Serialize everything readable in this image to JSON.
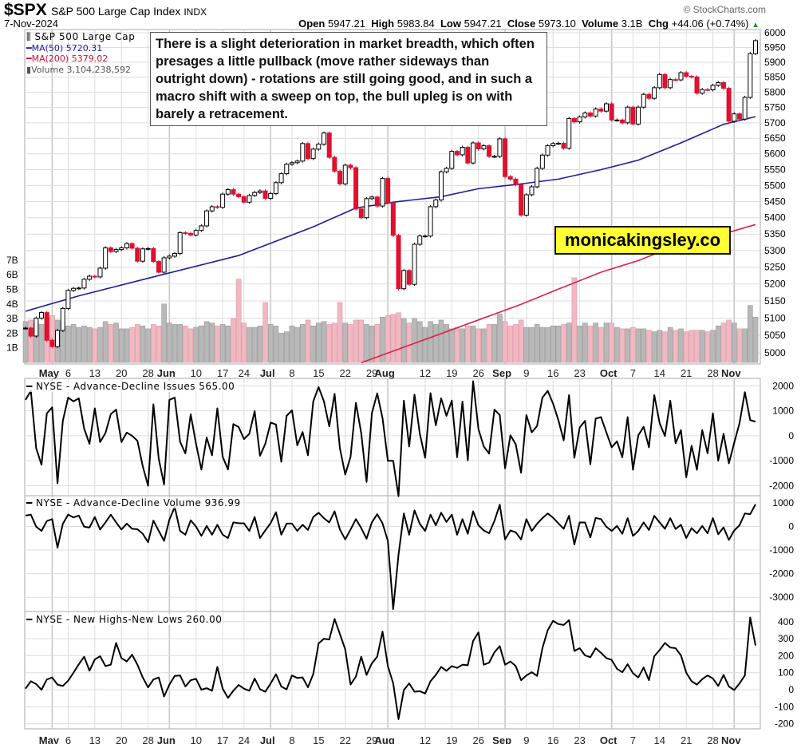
{
  "header": {
    "symbol": "$SPX",
    "name": "S&P 500 Large Cap Index",
    "exchange": "INDX",
    "date": "7-Nov-2024",
    "open_label": "Open",
    "open": "5947.21",
    "high_label": "High",
    "high": "5983.84",
    "low_label": "Low",
    "low": "5947.21",
    "close_label": "Close",
    "close": "5973.10",
    "volume_label": "Volume",
    "volume": "3.1B",
    "chg_label": "Chg",
    "chg": "+44.06 (+0.74%)",
    "copyright": "© StockCharts.com"
  },
  "legend": {
    "series": "S&P 500 Large Cap",
    "ma50": "MA(50) 5720.31",
    "ma200": "MA(200) 5379.02",
    "volume": "Volume 3,104,238,592"
  },
  "annotation": "There is a slight deterioration in market breadth, which often presages a little pullback (move rather sideways than outright down) - rotations are still going good, and in such a macro shift with a sweep on top, the bull upleg is on with barely a retracement.",
  "watermark": "monicakingsley.co",
  "colors": {
    "up": "#000000",
    "down": "#e0102f",
    "ma50": "#1c1ca0",
    "ma200": "#e0204a",
    "volume_up": "#b8b8b8",
    "volume_down": "#f2b8c2",
    "line": "#000000",
    "grid": "#dcdcdc"
  },
  "chart_data": [
    {
      "type": "candlestick",
      "title": "$SPX S&P 500 Large Cap Index INDX",
      "scale": "log",
      "ylim": [
        4960,
        6010
      ],
      "y_ticks": [
        6000,
        5950,
        5900,
        5850,
        5800,
        5750,
        5700,
        5650,
        5600,
        5550,
        5500,
        5450,
        5400,
        5350,
        5300,
        5250,
        5200,
        5150,
        5100,
        5050,
        5000
      ],
      "volume_ticks": [
        {
          "value": 1,
          "label": "1B"
        },
        {
          "value": 2,
          "label": "2B"
        },
        {
          "value": 3,
          "label": "3B"
        },
        {
          "value": 4,
          "label": "4B"
        },
        {
          "value": 5,
          "label": "5B"
        },
        {
          "value": 6,
          "label": "6B"
        },
        {
          "value": 7,
          "label": "7B"
        }
      ],
      "dates": [
        "2024-04-24",
        "2024-04-25",
        "2024-04-26",
        "2024-04-29",
        "2024-04-30",
        "2024-05-01",
        "2024-05-02",
        "2024-05-03",
        "2024-05-06",
        "2024-05-07",
        "2024-05-08",
        "2024-05-09",
        "2024-05-10",
        "2024-05-13",
        "2024-05-14",
        "2024-05-15",
        "2024-05-16",
        "2024-05-17",
        "2024-05-20",
        "2024-05-21",
        "2024-05-22",
        "2024-05-23",
        "2024-05-24",
        "2024-05-28",
        "2024-05-29",
        "2024-05-30",
        "2024-05-31",
        "2024-06-03",
        "2024-06-04",
        "2024-06-05",
        "2024-06-06",
        "2024-06-07",
        "2024-06-10",
        "2024-06-11",
        "2024-06-12",
        "2024-06-13",
        "2024-06-14",
        "2024-06-17",
        "2024-06-18",
        "2024-06-20",
        "2024-06-21",
        "2024-06-24",
        "2024-06-25",
        "2024-06-26",
        "2024-06-27",
        "2024-06-28",
        "2024-07-01",
        "2024-07-02",
        "2024-07-03",
        "2024-07-05",
        "2024-07-08",
        "2024-07-09",
        "2024-07-10",
        "2024-07-11",
        "2024-07-12",
        "2024-07-15",
        "2024-07-16",
        "2024-07-17",
        "2024-07-18",
        "2024-07-19",
        "2024-07-22",
        "2024-07-23",
        "2024-07-24",
        "2024-07-25",
        "2024-07-26",
        "2024-07-29",
        "2024-07-30",
        "2024-07-31",
        "2024-08-01",
        "2024-08-02",
        "2024-08-05",
        "2024-08-06",
        "2024-08-07",
        "2024-08-08",
        "2024-08-09",
        "2024-08-12",
        "2024-08-13",
        "2024-08-14",
        "2024-08-15",
        "2024-08-16",
        "2024-08-19",
        "2024-08-20",
        "2024-08-21",
        "2024-08-22",
        "2024-08-23",
        "2024-08-26",
        "2024-08-27",
        "2024-08-28",
        "2024-08-29",
        "2024-08-30",
        "2024-09-03",
        "2024-09-04",
        "2024-09-05",
        "2024-09-06",
        "2024-09-09",
        "2024-09-10",
        "2024-09-11",
        "2024-09-12",
        "2024-09-13",
        "2024-09-16",
        "2024-09-17",
        "2024-09-18",
        "2024-09-19",
        "2024-09-20",
        "2024-09-23",
        "2024-09-24",
        "2024-09-25",
        "2024-09-26",
        "2024-09-27",
        "2024-09-30",
        "2024-10-01",
        "2024-10-02",
        "2024-10-03",
        "2024-10-04",
        "2024-10-07",
        "2024-10-08",
        "2024-10-09",
        "2024-10-10",
        "2024-10-11",
        "2024-10-14",
        "2024-10-15",
        "2024-10-16",
        "2024-10-17",
        "2024-10-18",
        "2024-10-21",
        "2024-10-22",
        "2024-10-23",
        "2024-10-24",
        "2024-10-25",
        "2024-10-28",
        "2024-10-29",
        "2024-10-30",
        "2024-10-31",
        "2024-11-01",
        "2024-11-04",
        "2024-11-05",
        "2024-11-06",
        "2024-11-07"
      ],
      "close": [
        5071,
        5048,
        5100,
        5116,
        5036,
        5018,
        5064,
        5128,
        5181,
        5187,
        5188,
        5214,
        5223,
        5221,
        5247,
        5308,
        5297,
        5303,
        5308,
        5321,
        5307,
        5268,
        5305,
        5306,
        5267,
        5235,
        5278,
        5283,
        5291,
        5354,
        5352,
        5347,
        5361,
        5375,
        5421,
        5434,
        5432,
        5473,
        5487,
        5473,
        5465,
        5448,
        5469,
        5478,
        5483,
        5460,
        5475,
        5509,
        5537,
        5567,
        5572,
        5577,
        5633,
        5585,
        5615,
        5631,
        5667,
        5589,
        5545,
        5505,
        5564,
        5556,
        5427,
        5400,
        5459,
        5464,
        5436,
        5522,
        5446,
        5346,
        5186,
        5240,
        5199,
        5319,
        5344,
        5344,
        5434,
        5455,
        5543,
        5554,
        5608,
        5597,
        5621,
        5571,
        5635,
        5616,
        5626,
        5592,
        5592,
        5648,
        5528,
        5520,
        5503,
        5408,
        5471,
        5496,
        5554,
        5596,
        5626,
        5633,
        5634,
        5618,
        5714,
        5703,
        5719,
        5732,
        5722,
        5745,
        5738,
        5762,
        5709,
        5709,
        5700,
        5751,
        5696,
        5751,
        5793,
        5780,
        5815,
        5859,
        5815,
        5842,
        5841,
        5865,
        5853,
        5851,
        5797,
        5809,
        5808,
        5823,
        5832,
        5813,
        5705,
        5729,
        5712,
        5783,
        5929,
        5973
      ],
      "volume_billions": [
        2.8,
        2.9,
        2.7,
        2.6,
        3.1,
        3.2,
        2.9,
        2.8,
        2.5,
        2.6,
        2.4,
        2.5,
        2.4,
        2.3,
        2.4,
        2.8,
        2.6,
        2.7,
        2.3,
        2.3,
        2.4,
        2.6,
        2.5,
        2.3,
        2.6,
        2.5,
        4.0,
        2.7,
        2.6,
        2.6,
        2.5,
        2.3,
        2.4,
        2.5,
        2.8,
        2.7,
        2.5,
        2.6,
        2.5,
        3.0,
        5.7,
        2.7,
        2.4,
        2.4,
        2.5,
        4.1,
        2.6,
        2.5,
        2.0,
        2.1,
        2.5,
        2.4,
        2.6,
        2.9,
        2.5,
        2.7,
        2.8,
        2.6,
        2.7,
        4.1,
        2.7,
        2.6,
        2.9,
        2.9,
        2.6,
        2.5,
        2.6,
        3.1,
        3.2,
        3.3,
        3.4,
        3.0,
        2.7,
        3.0,
        2.8,
        2.4,
        2.8,
        2.6,
        2.9,
        2.6,
        2.3,
        2.4,
        2.3,
        2.5,
        2.5,
        2.3,
        2.3,
        2.6,
        2.6,
        3.3,
        2.8,
        2.5,
        2.6,
        2.9,
        2.4,
        2.4,
        2.6,
        2.4,
        2.4,
        2.5,
        2.5,
        2.6,
        2.7,
        5.8,
        2.5,
        2.7,
        2.5,
        2.7,
        2.4,
        2.7,
        2.7,
        2.4,
        2.3,
        2.3,
        2.4,
        2.3,
        2.3,
        2.2,
        2.1,
        2.2,
        2.1,
        2.4,
        2.2,
        2.3,
        2.1,
        2.2,
        2.2,
        2.2,
        2.1,
        2.2,
        2.5,
        2.7,
        2.9,
        2.7,
        2.3,
        2.3,
        3.9,
        3.1
      ],
      "ma50": [
        {
          "date": "2024-04-24",
          "value": 5120
        },
        {
          "date": "2024-05-08",
          "value": 5165
        },
        {
          "date": "2024-05-30",
          "value": 5225
        },
        {
          "date": "2024-06-21",
          "value": 5285
        },
        {
          "date": "2024-07-12",
          "value": 5372
        },
        {
          "date": "2024-07-24",
          "value": 5430
        },
        {
          "date": "2024-08-05",
          "value": 5450
        },
        {
          "date": "2024-08-15",
          "value": 5465
        },
        {
          "date": "2024-08-26",
          "value": 5490
        },
        {
          "date": "2024-09-06",
          "value": 5505
        },
        {
          "date": "2024-09-17",
          "value": 5520
        },
        {
          "date": "2024-09-27",
          "value": 5550
        },
        {
          "date": "2024-10-08",
          "value": 5580
        },
        {
          "date": "2024-10-18",
          "value": 5635
        },
        {
          "date": "2024-10-30",
          "value": 5695
        },
        {
          "date": "2024-11-07",
          "value": 5720
        }
      ],
      "ma200": [
        {
          "date": "2024-07-25",
          "value": 4972
        },
        {
          "date": "2024-08-15",
          "value": 5055
        },
        {
          "date": "2024-09-06",
          "value": 5140
        },
        {
          "date": "2024-09-17",
          "value": 5185
        },
        {
          "date": "2024-09-27",
          "value": 5235
        },
        {
          "date": "2024-10-08",
          "value": 5270
        },
        {
          "date": "2024-10-14",
          "value": 5295
        },
        {
          "date": "2024-11-07",
          "value": 5379
        }
      ],
      "x_ticks": [
        {
          "date": "2024-05-01",
          "label": "May",
          "major": true
        },
        {
          "date": "2024-05-06",
          "label": "6"
        },
        {
          "date": "2024-05-13",
          "label": "13"
        },
        {
          "date": "2024-05-20",
          "label": "20"
        },
        {
          "date": "2024-05-28",
          "label": "28"
        },
        {
          "date": "2024-06-03",
          "label": "Jun",
          "major": true
        },
        {
          "date": "2024-06-10",
          "label": "10"
        },
        {
          "date": "2024-06-17",
          "label": "17"
        },
        {
          "date": "2024-06-24",
          "label": "24"
        },
        {
          "date": "2024-07-01",
          "label": "Jul",
          "major": true
        },
        {
          "date": "2024-07-08",
          "label": "8"
        },
        {
          "date": "2024-07-15",
          "label": "15"
        },
        {
          "date": "2024-07-22",
          "label": "22"
        },
        {
          "date": "2024-07-29",
          "label": "29"
        },
        {
          "date": "2024-08-01",
          "label": "Aug",
          "major": true
        },
        {
          "date": "2024-08-12",
          "label": "12"
        },
        {
          "date": "2024-08-19",
          "label": "19"
        },
        {
          "date": "2024-08-26",
          "label": "26"
        },
        {
          "date": "2024-09-03",
          "label": "Sep",
          "major": true
        },
        {
          "date": "2024-09-09",
          "label": "9"
        },
        {
          "date": "2024-09-16",
          "label": "16"
        },
        {
          "date": "2024-09-23",
          "label": "23"
        },
        {
          "date": "2024-10-01",
          "label": "Oct",
          "major": true
        },
        {
          "date": "2024-10-07",
          "label": "7"
        },
        {
          "date": "2024-10-14",
          "label": "14"
        },
        {
          "date": "2024-10-21",
          "label": "21"
        },
        {
          "date": "2024-10-28",
          "label": "28"
        },
        {
          "date": "2024-11-01",
          "label": "Nov",
          "major": true
        }
      ]
    },
    {
      "type": "line",
      "title": "NYSE - Advance-Decline Issues 565.00",
      "ylim": [
        -2400,
        2300
      ],
      "y_ticks": [
        2000,
        1000,
        0,
        -1000,
        -2000
      ],
      "values": [
        1440,
        1800,
        -500,
        -1160,
        900,
        1140,
        -1900,
        600,
        1530,
        1380,
        1500,
        290,
        -320,
        1100,
        -250,
        110,
        870,
        1050,
        -250,
        130,
        0,
        -200,
        -1220,
        -2000,
        1260,
        -920,
        -1950,
        1440,
        1530,
        -230,
        -710,
        860,
        -320,
        -1350,
        -70,
        -780,
        1100,
        -840,
        -1350,
        470,
        350,
        -130,
        80,
        990,
        -800,
        -320,
        530,
        450,
        -1040,
        800,
        1020,
        -380,
        150,
        -780,
        1380,
        1950,
        1380,
        380,
        1680,
        -500,
        -1550,
        -840,
        1320,
        110,
        -1850,
        900,
        1700,
        710,
        -1000,
        -1000,
        -2420,
        1410,
        -430,
        1650,
        80,
        -880,
        1710,
        420,
        1500,
        800,
        1410,
        -860,
        1370,
        -980,
        2190,
        270,
        -430,
        -710,
        1050,
        830,
        -1300,
        20,
        -340,
        -1480,
        830,
        140,
        390,
        1530,
        1800,
        1290,
        630,
        -180,
        1630,
        -880,
        330,
        600,
        -1140,
        690,
        750,
        140,
        -460,
        -220,
        -860,
        750,
        -1360,
        20,
        360,
        -460,
        1630,
        510,
        -10,
        1410,
        -300,
        230,
        -1660,
        -400,
        -1360,
        230,
        -700,
        900,
        -1000,
        80,
        -1100,
        -280,
        510,
        1750,
        630,
        565
      ]
    },
    {
      "type": "line",
      "title": "NYSE - Advance-Decline Volume 936.99",
      "ylim": [
        -3600,
        1300
      ],
      "y_ticks": [
        1000,
        0,
        -1000,
        -2000,
        -3000
      ],
      "values": [
        460,
        500,
        -10,
        -190,
        230,
        310,
        -900,
        110,
        500,
        380,
        460,
        -10,
        -50,
        400,
        -130,
        170,
        500,
        170,
        -130,
        120,
        -100,
        -120,
        -310,
        -670,
        250,
        -190,
        -610,
        290,
        820,
        -190,
        -350,
        260,
        -10,
        -400,
        20,
        -350,
        70,
        -350,
        -490,
        170,
        140,
        130,
        -190,
        400,
        -490,
        -170,
        140,
        600,
        -350,
        120,
        120,
        -190,
        70,
        -150,
        400,
        580,
        350,
        170,
        640,
        -130,
        -550,
        -130,
        310,
        -70,
        -520,
        170,
        520,
        130,
        -610,
        -3500,
        -1200,
        550,
        -350,
        680,
        110,
        -190,
        500,
        50,
        580,
        190,
        500,
        -350,
        310,
        -310,
        640,
        50,
        -170,
        -290,
        230,
        920,
        -550,
        -170,
        -250,
        -550,
        310,
        -190,
        110,
        350,
        550,
        370,
        130,
        -100,
        450,
        -760,
        170,
        170,
        -460,
        360,
        310,
        -10,
        -190,
        20,
        -310,
        350,
        -400,
        -190,
        170,
        -150,
        450,
        170,
        -100,
        350,
        -110,
        70,
        -490,
        -70,
        -290,
        20,
        -290,
        350,
        -330,
        -40,
        -570,
        -170,
        50,
        550,
        520,
        936.99
      ]
    },
    {
      "type": "line",
      "title": "NYSE - New Highs-New Lows 260.00",
      "ylim": [
        -230,
        460
      ],
      "y_ticks": [
        400,
        300,
        200,
        100,
        0,
        -100,
        -200
      ],
      "values": [
        6,
        50,
        33,
        0,
        60,
        72,
        30,
        22,
        53,
        100,
        150,
        194,
        112,
        178,
        197,
        139,
        147,
        275,
        186,
        166,
        206,
        147,
        72,
        14,
        60,
        72,
        -40,
        30,
        81,
        84,
        19,
        56,
        64,
        0,
        9,
        -6,
        134,
        6,
        -48,
        -6,
        28,
        6,
        -6,
        66,
        3,
        -12,
        37,
        91,
        19,
        2,
        84,
        69,
        72,
        14,
        92,
        272,
        300,
        295,
        416,
        327,
        237,
        30,
        77,
        194,
        87,
        155,
        194,
        342,
        139,
        37,
        -173,
        -2,
        37,
        -12,
        -9,
        -22,
        50,
        87,
        134,
        111,
        139,
        128,
        147,
        144,
        287,
        337,
        147,
        159,
        220,
        256,
        147,
        166,
        139,
        56,
        84,
        103,
        81,
        244,
        350,
        405,
        386,
        381,
        409,
        228,
        244,
        202,
        191,
        244,
        217,
        186,
        175,
        123,
        103,
        150,
        97,
        72,
        131,
        56,
        197,
        233,
        275,
        248,
        244,
        202,
        100,
        50,
        30,
        62,
        84,
        66,
        22,
        87,
        19,
        -2,
        37,
        84,
        425,
        260
      ]
    }
  ]
}
